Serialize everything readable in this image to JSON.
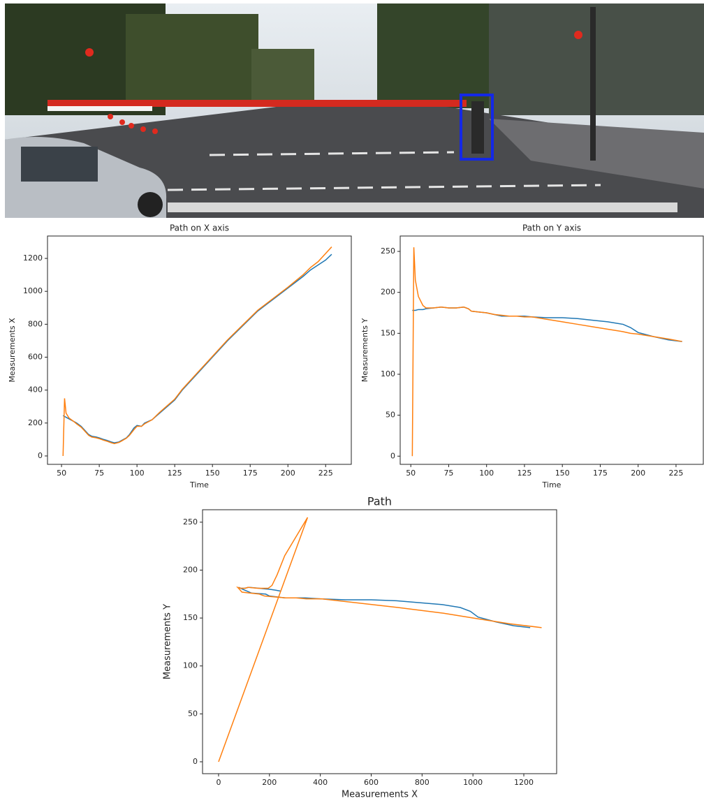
{
  "chart_data": [
    {
      "type": "line",
      "title": "Path on X axis",
      "xlabel": "Time",
      "ylabel": "Measurements X",
      "x": [
        51,
        52,
        53,
        55,
        58,
        60,
        63,
        65,
        68,
        70,
        73,
        75,
        78,
        80,
        83,
        85,
        88,
        90,
        93,
        95,
        98,
        100,
        103,
        105,
        110,
        115,
        120,
        125,
        130,
        140,
        150,
        160,
        170,
        180,
        190,
        200,
        210,
        215,
        220,
        225,
        229
      ],
      "series": [
        {
          "color": "#1f77b4",
          "values": [
            245,
            240,
            235,
            225,
            210,
            200,
            180,
            160,
            130,
            120,
            115,
            110,
            100,
            95,
            85,
            80,
            85,
            95,
            110,
            130,
            170,
            185,
            180,
            200,
            220,
            260,
            300,
            340,
            400,
            500,
            600,
            700,
            790,
            880,
            950,
            1020,
            1090,
            1130,
            1160,
            1190,
            1225
          ]
        },
        {
          "color": "#ff7f0e",
          "values": [
            0,
            350,
            260,
            230,
            210,
            195,
            175,
            155,
            125,
            115,
            110,
            105,
            95,
            90,
            80,
            75,
            82,
            92,
            108,
            125,
            160,
            180,
            180,
            195,
            220,
            265,
            305,
            345,
            405,
            505,
            605,
            705,
            795,
            885,
            955,
            1025,
            1100,
            1145,
            1180,
            1230,
            1270
          ]
        }
      ],
      "xlim": [
        40.7,
        242
      ],
      "ylim": [
        -51,
        1336
      ],
      "xticks": [
        50,
        75,
        100,
        125,
        150,
        175,
        200,
        225
      ],
      "yticks": [
        0,
        200,
        400,
        600,
        800,
        1000,
        1200
      ]
    },
    {
      "type": "line",
      "title": "Path on Y axis",
      "xlabel": "Time",
      "ylabel": "Measurements Y",
      "x": [
        51,
        52,
        53,
        55,
        58,
        60,
        65,
        70,
        75,
        80,
        85,
        88,
        90,
        95,
        100,
        105,
        110,
        115,
        120,
        125,
        130,
        140,
        150,
        160,
        170,
        180,
        190,
        195,
        200,
        210,
        220,
        229
      ],
      "series": [
        {
          "color": "#1f77b4",
          "values": [
            178,
            178,
            178,
            179,
            179,
            180,
            181,
            182,
            181,
            181,
            182,
            180,
            177,
            176,
            175,
            173,
            171,
            171,
            171,
            171,
            170,
            169,
            169,
            168,
            166,
            164,
            161,
            157,
            151,
            146,
            142,
            140
          ]
        },
        {
          "color": "#ff7f0e",
          "values": [
            0,
            255,
            215,
            195,
            184,
            181,
            181,
            182,
            181,
            181,
            182,
            180,
            177,
            176,
            175,
            173,
            172,
            171,
            171,
            170,
            170,
            167,
            164,
            161,
            158,
            155,
            152,
            150,
            149,
            146,
            143,
            140
          ]
        }
      ],
      "xlim": [
        43,
        243
      ],
      "ylim": [
        -10,
        268.8
      ],
      "xticks": [
        50,
        75,
        100,
        125,
        150,
        175,
        200,
        225
      ],
      "yticks": [
        0,
        50,
        100,
        150,
        200,
        250
      ]
    },
    {
      "type": "line",
      "title": "Path",
      "xlabel": "Measurements X",
      "ylabel": "Measurements Y",
      "series": [
        {
          "color": "#1f77b4",
          "x": [
            245,
            225,
            200,
            160,
            120,
            100,
            85,
            80,
            95,
            130,
            185,
            200,
            260,
            340,
            400,
            500,
            600,
            700,
            790,
            880,
            950,
            990,
            1020,
            1090,
            1160,
            1225
          ],
          "values": [
            178,
            179,
            180,
            181,
            182,
            181,
            181,
            182,
            180,
            176,
            175,
            173,
            171,
            171,
            170,
            169,
            169,
            168,
            166,
            164,
            161,
            157,
            151,
            146,
            142,
            140
          ]
        },
        {
          "color": "#ff7f0e",
          "x": [
            0,
            350,
            260,
            230,
            210,
            195,
            155,
            115,
            105,
            90,
            75,
            82,
            92,
            125,
            160,
            180,
            220,
            265,
            305,
            345,
            405,
            505,
            605,
            705,
            795,
            885,
            955,
            1025,
            1145,
            1270
          ],
          "values": [
            0,
            255,
            215,
            195,
            184,
            181,
            181,
            182,
            181,
            181,
            182,
            180,
            177,
            176,
            175,
            173,
            172,
            171,
            171,
            170,
            170,
            167,
            164,
            161,
            158,
            155,
            152,
            149,
            144,
            140
          ]
        }
      ],
      "xlim": [
        -63,
        1329
      ],
      "ylim": [
        -12.4,
        263
      ],
      "xticks": [
        0,
        200,
        400,
        600,
        800,
        1000,
        1200
      ],
      "yticks": [
        0,
        50,
        100,
        150,
        200,
        250
      ]
    }
  ]
}
